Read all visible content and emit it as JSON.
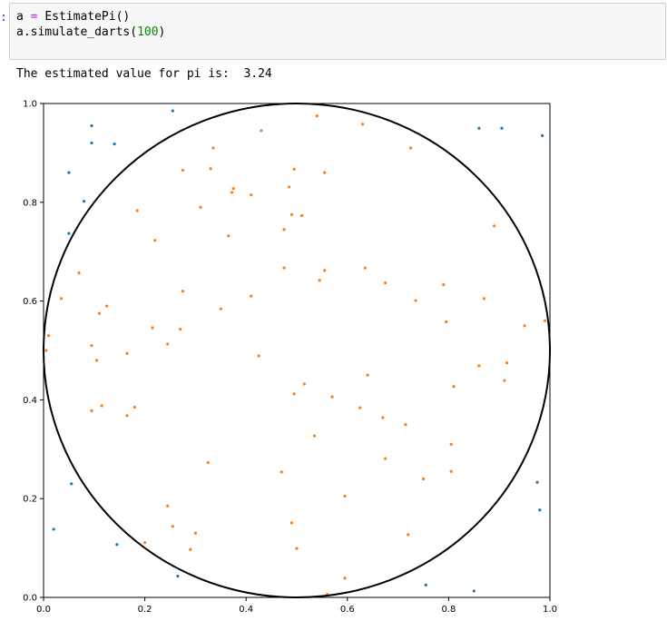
{
  "prompt": ":",
  "code": {
    "line1": {
      "var": "a",
      "op": "=",
      "rest": "EstimatePi()"
    },
    "line2": {
      "call": "a.simulate_darts(",
      "arg": "100",
      "close": ")"
    }
  },
  "output": {
    "text": "The estimated value for pi is:  3.24"
  },
  "colors": {
    "inside": "#ff7f0e",
    "outside": "#1f77b4",
    "circle": "#000000"
  },
  "chart_data": {
    "type": "scatter",
    "xlim": [
      0.0,
      1.0
    ],
    "ylim": [
      0.0,
      1.0
    ],
    "xticks": [
      "0.0",
      "0.2",
      "0.4",
      "0.6",
      "0.8",
      "1.0"
    ],
    "yticks": [
      "0.0",
      "0.2",
      "0.4",
      "0.6",
      "0.8",
      "1.0"
    ],
    "grid": false,
    "circle": {
      "center": [
        0.5,
        0.5
      ],
      "radius": 0.5
    },
    "series": [
      {
        "color": "#ff7f0e",
        "points": [
          [
            0.54,
            0.975
          ],
          [
            0.63,
            0.958
          ],
          [
            0.43,
            0.945
          ],
          [
            0.725,
            0.91
          ],
          [
            0.335,
            0.91
          ],
          [
            0.275,
            0.865
          ],
          [
            0.33,
            0.868
          ],
          [
            0.495,
            0.867
          ],
          [
            0.555,
            0.86
          ],
          [
            0.485,
            0.831
          ],
          [
            0.375,
            0.828
          ],
          [
            0.372,
            0.82
          ],
          [
            0.41,
            0.815
          ],
          [
            0.31,
            0.79
          ],
          [
            0.185,
            0.783
          ],
          [
            0.49,
            0.775
          ],
          [
            0.51,
            0.773
          ],
          [
            0.89,
            0.752
          ],
          [
            0.475,
            0.745
          ],
          [
            0.365,
            0.732
          ],
          [
            0.22,
            0.723
          ],
          [
            0.475,
            0.667
          ],
          [
            0.635,
            0.667
          ],
          [
            0.555,
            0.662
          ],
          [
            0.07,
            0.657
          ],
          [
            0.545,
            0.642
          ],
          [
            0.675,
            0.637
          ],
          [
            0.79,
            0.633
          ],
          [
            0.275,
            0.62
          ],
          [
            0.41,
            0.61
          ],
          [
            0.035,
            0.605
          ],
          [
            0.87,
            0.605
          ],
          [
            0.735,
            0.601
          ],
          [
            0.125,
            0.59
          ],
          [
            0.35,
            0.584
          ],
          [
            0.11,
            0.575
          ],
          [
            0.795,
            0.558
          ],
          [
            0.99,
            0.56
          ],
          [
            0.95,
            0.55
          ],
          [
            0.215,
            0.546
          ],
          [
            0.27,
            0.543
          ],
          [
            0.01,
            0.53
          ],
          [
            0.245,
            0.513
          ],
          [
            0.095,
            0.51
          ],
          [
            0.005,
            0.5
          ],
          [
            0.165,
            0.494
          ],
          [
            0.425,
            0.489
          ],
          [
            0.105,
            0.48
          ],
          [
            0.915,
            0.475
          ],
          [
            0.86,
            0.469
          ],
          [
            0.64,
            0.45
          ],
          [
            0.91,
            0.439
          ],
          [
            0.515,
            0.432
          ],
          [
            0.81,
            0.427
          ],
          [
            0.495,
            0.412
          ],
          [
            0.57,
            0.406
          ],
          [
            0.115,
            0.388
          ],
          [
            0.18,
            0.385
          ],
          [
            0.625,
            0.384
          ],
          [
            0.095,
            0.378
          ],
          [
            0.165,
            0.368
          ],
          [
            0.67,
            0.364
          ],
          [
            0.715,
            0.35
          ],
          [
            0.535,
            0.327
          ],
          [
            0.805,
            0.31
          ],
          [
            0.675,
            0.281
          ],
          [
            0.325,
            0.273
          ],
          [
            0.47,
            0.254
          ],
          [
            0.805,
            0.255
          ],
          [
            0.75,
            0.24
          ],
          [
            0.595,
            0.205
          ],
          [
            0.245,
            0.185
          ],
          [
            0.49,
            0.151
          ],
          [
            0.255,
            0.144
          ],
          [
            0.3,
            0.13
          ],
          [
            0.72,
            0.127
          ],
          [
            0.2,
            0.111
          ],
          [
            0.5,
            0.099
          ],
          [
            0.29,
            0.097
          ],
          [
            0.595,
            0.039
          ],
          [
            0.56,
            0.006
          ]
        ]
      },
      {
        "color": "#1f77b4",
        "points": [
          [
            0.255,
            0.985
          ],
          [
            0.095,
            0.955
          ],
          [
            0.86,
            0.95
          ],
          [
            0.905,
            0.95
          ],
          [
            0.985,
            0.935
          ],
          [
            0.095,
            0.92
          ],
          [
            0.14,
            0.918
          ],
          [
            0.05,
            0.86
          ],
          [
            0.08,
            0.802
          ],
          [
            0.05,
            0.737
          ],
          [
            0.055,
            0.23
          ],
          [
            0.975,
            0.233
          ],
          [
            0.98,
            0.177
          ],
          [
            0.02,
            0.138
          ],
          [
            0.145,
            0.107
          ],
          [
            0.265,
            0.043
          ],
          [
            0.755,
            0.025
          ],
          [
            0.85,
            0.013
          ]
        ]
      }
    ]
  }
}
